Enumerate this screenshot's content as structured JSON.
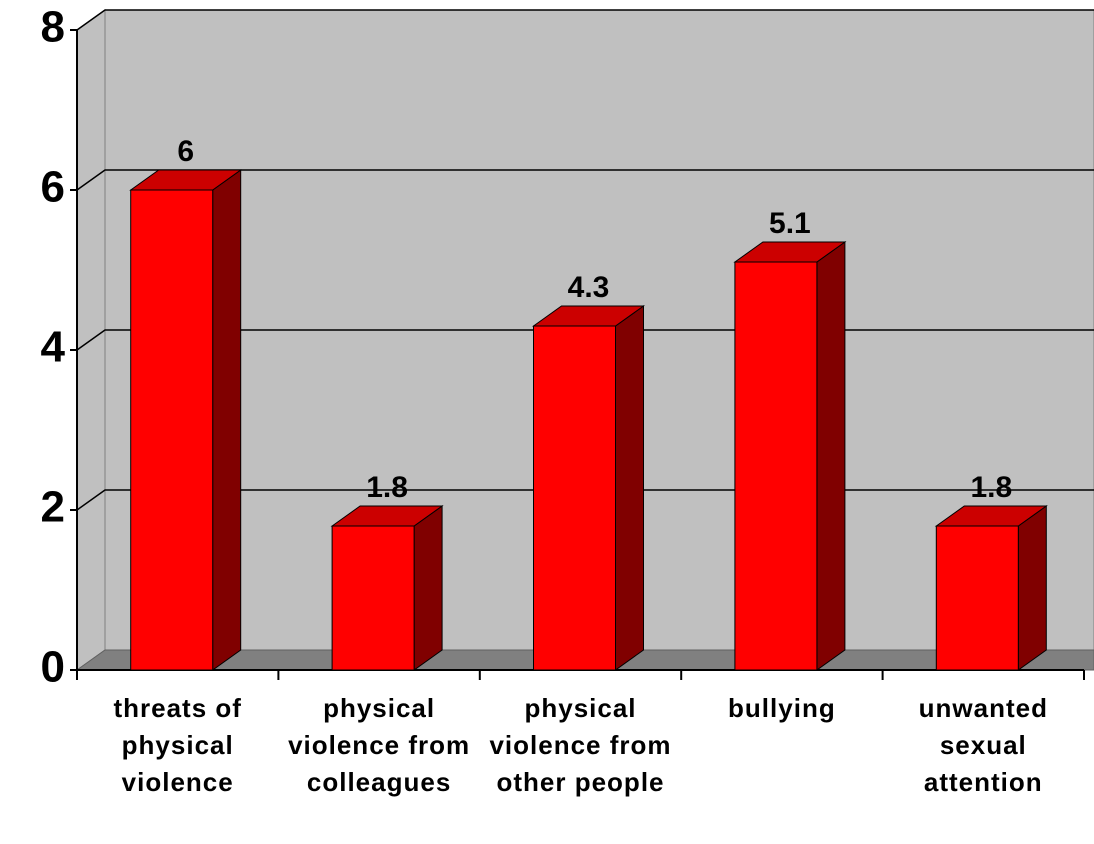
{
  "chart_data": {
    "type": "bar3d",
    "categories": [
      "threats of physical violence",
      "physical violence from colleagues",
      "physical violence from other people",
      "bullying",
      "unwanted sexual attention"
    ],
    "values": [
      6,
      1.8,
      4.3,
      5.1,
      1.8
    ],
    "color": "#ff0000",
    "ylim": [
      0,
      8
    ],
    "yticks": [
      0,
      2,
      4,
      6,
      8
    ],
    "grid": true
  }
}
